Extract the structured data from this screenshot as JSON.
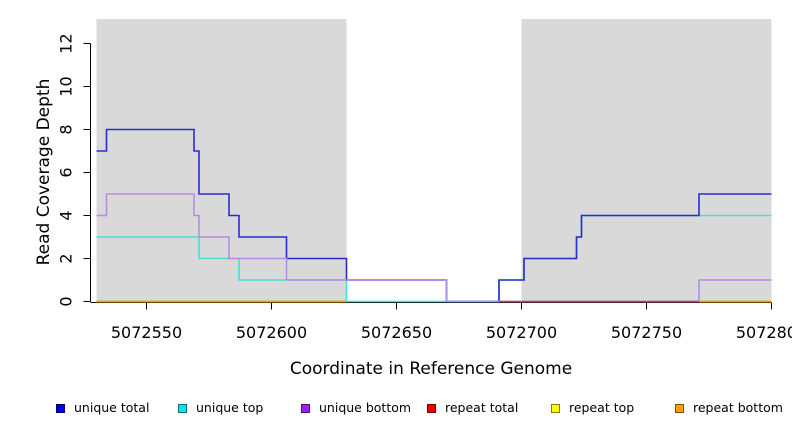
{
  "chart_data": {
    "type": "line",
    "subtype": "step-post",
    "title": "",
    "xlabel": "Coordinate in Reference Genome",
    "ylabel": "Read Coverage Depth",
    "xlim": [
      5072530,
      5072800
    ],
    "ylim": [
      0,
      13.1
    ],
    "xticks": [
      5072550,
      5072600,
      5072650,
      5072700,
      5072750,
      5072800
    ],
    "yticks": [
      0,
      2,
      4,
      6,
      8,
      10,
      12
    ],
    "grid": false,
    "legend_position": "bottom",
    "masked_region_color": "#d9d9d9",
    "masked_regions": [
      [
        5072530,
        5072630
      ],
      [
        5072700,
        5072800
      ]
    ],
    "series": [
      {
        "name": "unique total",
        "color": "#2b2bd5",
        "legend_color": "#0000ee",
        "segments": [
          [
            [
              5072530,
              7
            ],
            [
              5072534,
              8
            ],
            [
              5072569,
              7
            ],
            [
              5072571,
              5
            ],
            [
              5072583,
              4
            ],
            [
              5072587,
              3
            ],
            [
              5072606,
              2
            ],
            [
              5072630,
              1
            ],
            [
              5072670,
              0
            ],
            [
              5072691,
              1
            ],
            [
              5072701,
              2
            ],
            [
              5072722,
              3
            ],
            [
              5072724,
              4
            ],
            [
              5072771,
              5
            ],
            [
              5072800,
              5
            ]
          ]
        ]
      },
      {
        "name": "unique top",
        "color": "#45dede",
        "legend_color": "#00e5e5",
        "segments": [
          [
            [
              5072530,
              3
            ],
            [
              5072571,
              2
            ],
            [
              5072587,
              1
            ],
            [
              5072630,
              0
            ],
            [
              5072691,
              1
            ],
            [
              5072701,
              2
            ],
            [
              5072722,
              3
            ],
            [
              5072724,
              4
            ],
            [
              5072800,
              4
            ]
          ]
        ]
      },
      {
        "name": "unique bottom",
        "color": "#b78ce2",
        "legend_color": "#a020f0",
        "segments": [
          [
            [
              5072530,
              4
            ],
            [
              5072534,
              5
            ],
            [
              5072569,
              4
            ],
            [
              5072571,
              3
            ],
            [
              5072583,
              2
            ],
            [
              5072606,
              1
            ],
            [
              5072670,
              0
            ],
            [
              5072771,
              1
            ],
            [
              5072800,
              1
            ]
          ]
        ]
      },
      {
        "name": "repeat total",
        "color": "#c43f62",
        "legend_color": "#ee0000",
        "segments": [
          [
            [
              5072530,
              0
            ],
            [
              5072630,
              0
            ]
          ],
          [
            [
              5072691,
              0
            ],
            [
              5072800,
              0
            ]
          ]
        ]
      },
      {
        "name": "repeat top",
        "color": "#e8e800",
        "legend_color": "#ffff00",
        "segments": [
          [
            [
              5072530,
              0
            ],
            [
              5072630,
              0
            ]
          ],
          [
            [
              5072771,
              0
            ],
            [
              5072800,
              0
            ]
          ]
        ]
      },
      {
        "name": "repeat bottom",
        "color": "#ff9d00",
        "legend_color": "#ffa000",
        "segments": [
          [
            [
              5072530,
              0
            ],
            [
              5072630,
              0
            ]
          ],
          [
            [
              5072771,
              0
            ],
            [
              5072800,
              0
            ]
          ]
        ]
      }
    ]
  }
}
